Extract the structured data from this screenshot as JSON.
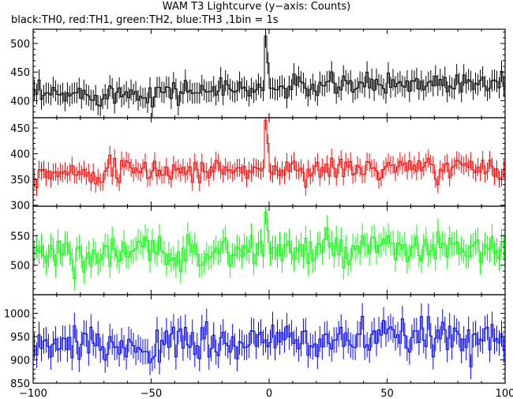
{
  "title": "WAM T3 Lightcurve (y−axis: Counts)",
  "subtitle": "black:TH0, red:TH1, green:TH2, blue:TH3 ,1bin = 1s",
  "chart_data": {
    "type": "line",
    "style": "histogram-steps-with-error-bars",
    "x_range": [
      -100,
      100
    ],
    "x_ticks": [
      -100,
      -50,
      0,
      50,
      100
    ],
    "x_tick_labels": [
      "−100",
      "−50",
      "0",
      "50",
      "100"
    ],
    "bin_seconds": 1,
    "panels": [
      {
        "channel": "TH0",
        "color": "#000000",
        "ylim": [
          370,
          525
        ],
        "y_ticks": [
          400,
          450,
          500
        ],
        "y_tick_labels": [
          "400",
          "450",
          "500"
        ],
        "baseline": 408,
        "trend": 0.14,
        "noise": 14,
        "spike_x": -2,
        "spike_height": 105
      },
      {
        "channel": "TH1",
        "color": "#ff0000",
        "ylim": [
          298,
          470
        ],
        "y_ticks": [
          300,
          350,
          400,
          450
        ],
        "y_tick_labels": [
          "300",
          "350",
          "400",
          "450"
        ],
        "baseline": 365,
        "trend": 0.04,
        "noise": 16,
        "spike_x": -2,
        "spike_height": 100
      },
      {
        "channel": "TH2",
        "color": "#00ff00",
        "ylim": [
          450,
          600
        ],
        "y_ticks": [
          500,
          550
        ],
        "y_tick_labels": [
          "500",
          "550"
        ],
        "baseline": 520,
        "trend": 0.04,
        "noise": 20,
        "spike_x": -2,
        "spike_height": 70
      },
      {
        "channel": "TH3",
        "color": "#0000ff",
        "ylim": [
          850,
          1040
        ],
        "y_ticks": [
          850,
          900,
          950,
          1000
        ],
        "y_tick_labels": [
          "850",
          "900",
          "950",
          "1000"
        ],
        "baseline": 925,
        "trend": 0.14,
        "noise": 28,
        "spike_x": -2,
        "spike_height": 0
      }
    ]
  }
}
